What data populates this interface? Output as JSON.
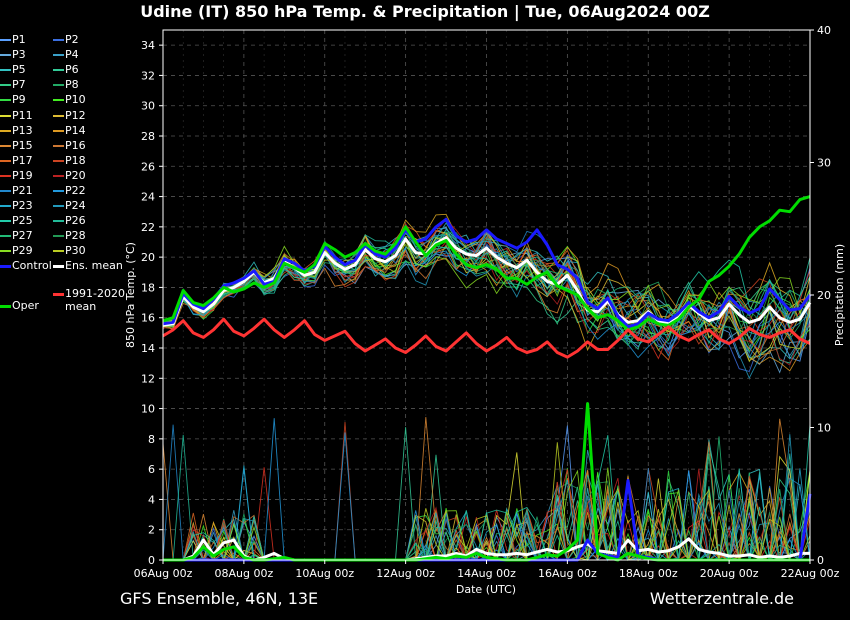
{
  "title": "Udine  (IT)  850 hPa Temp. & Precipitation | Tue, 06Aug2024 00Z",
  "footer": {
    "left": "GFS Ensemble, 46N, 13E",
    "right": "Wetterzentrale.de"
  },
  "chart_data": {
    "type": "line",
    "xlabel": "Date (UTC)",
    "ylabel": "850 hPa Temp. (°C)",
    "y2label": "Precipitation (mm)",
    "x_ticks": [
      "06Aug 00z",
      "08Aug 00z",
      "10Aug 00z",
      "12Aug 00z",
      "14Aug 00z",
      "16Aug 00z",
      "18Aug 00z",
      "20Aug 00z",
      "22Aug 00z"
    ],
    "x_range_hours": [
      0,
      384
    ],
    "step_hours": 6,
    "ylim": [
      0,
      35
    ],
    "y_ticks": [
      0,
      2,
      4,
      6,
      8,
      10,
      12,
      14,
      16,
      18,
      20,
      22,
      24,
      26,
      28,
      30,
      32,
      34
    ],
    "y2lim": [
      0,
      40
    ],
    "y2_ticks": [
      0,
      10,
      20,
      30,
      40
    ],
    "grid": true,
    "legend_entries": [
      {
        "label": "P1",
        "color": "#5aa0ff"
      },
      {
        "label": "P2",
        "color": "#3b6fe0"
      },
      {
        "label": "P3",
        "color": "#66aadd"
      },
      {
        "label": "P4",
        "color": "#3aa0c8"
      },
      {
        "label": "P5",
        "color": "#33c2c2"
      },
      {
        "label": "P6",
        "color": "#33cc99"
      },
      {
        "label": "P7",
        "color": "#33cc88"
      },
      {
        "label": "P8",
        "color": "#22aa66"
      },
      {
        "label": "P9",
        "color": "#33dd44"
      },
      {
        "label": "P10",
        "color": "#44ee22"
      },
      {
        "label": "P11",
        "color": "#dddd33"
      },
      {
        "label": "P12",
        "color": "#ddbb33"
      },
      {
        "label": "P13",
        "color": "#ddaa22"
      },
      {
        "label": "P14",
        "color": "#dd9922"
      },
      {
        "label": "P15",
        "color": "#dd8833"
      },
      {
        "label": "P16",
        "color": "#cc7733"
      },
      {
        "label": "P17",
        "color": "#dd6622"
      },
      {
        "label": "P18",
        "color": "#cc4422"
      },
      {
        "label": "P19",
        "color": "#dd3322"
      },
      {
        "label": "P20",
        "color": "#bb2222"
      },
      {
        "label": "P21",
        "color": "#2288cc"
      },
      {
        "label": "P22",
        "color": "#2299dd"
      },
      {
        "label": "P23",
        "color": "#22aacc"
      },
      {
        "label": "P24",
        "color": "#2299bb"
      },
      {
        "label": "P25",
        "color": "#22ccaa"
      },
      {
        "label": "P26",
        "color": "#22bb99"
      },
      {
        "label": "P27",
        "color": "#22bb77"
      },
      {
        "label": "P28",
        "color": "#229955"
      },
      {
        "label": "P29",
        "color": "#88dd22"
      },
      {
        "label": "P30",
        "color": "#bbcc22"
      },
      {
        "label": "Control",
        "color": "#1a1aff"
      },
      {
        "label": "Ens. mean",
        "color": "#ffffff"
      },
      {
        "label": "Oper",
        "color": "#00dd00"
      },
      {
        "label": "1991-2020 mean",
        "color": "#ff3333"
      }
    ],
    "series": [
      {
        "name": "Ens. mean",
        "axis": "temp",
        "color": "#ffffff",
        "values": [
          15.5,
          15.6,
          17.4,
          16.7,
          16.4,
          16.9,
          17.8,
          18.0,
          18.4,
          19.0,
          18.3,
          18.6,
          19.7,
          19.3,
          18.8,
          19.0,
          20.3,
          19.6,
          19.2,
          19.5,
          20.5,
          19.9,
          19.7,
          20.1,
          21.2,
          20.3,
          20.2,
          20.9,
          21.3,
          20.6,
          20.2,
          20.1,
          20.6,
          20.0,
          19.6,
          19.3,
          19.8,
          19.0,
          18.4,
          18.2,
          18.8,
          17.8,
          16.5,
          16.4,
          17.1,
          16.2,
          15.7,
          15.8,
          16.4,
          15.8,
          15.6,
          16.0,
          16.8,
          16.3,
          15.8,
          16.0,
          16.9,
          16.2,
          15.7,
          15.9,
          16.7,
          16.0,
          15.7,
          15.9,
          17.0
        ]
      },
      {
        "name": "Control",
        "axis": "temp",
        "color": "#1a1aff",
        "values": [
          15.6,
          15.7,
          17.6,
          16.9,
          16.6,
          17.2,
          18.1,
          18.3,
          18.6,
          19.1,
          18.2,
          18.4,
          19.9,
          19.6,
          19.1,
          19.4,
          20.7,
          20.0,
          19.5,
          19.8,
          20.8,
          20.2,
          20.0,
          20.6,
          21.8,
          21.0,
          21.2,
          22.0,
          22.5,
          21.4,
          21.0,
          21.2,
          21.8,
          21.2,
          20.9,
          20.6,
          21.0,
          21.8,
          20.8,
          19.5,
          19.2,
          18.6,
          17.0,
          16.6,
          17.3,
          16.1,
          15.4,
          15.6,
          16.3,
          15.9,
          15.8,
          16.3,
          17.0,
          16.4,
          16.0,
          16.4,
          17.4,
          16.7,
          16.3,
          16.6,
          17.9,
          17.2,
          16.5,
          16.6,
          17.5
        ]
      },
      {
        "name": "Oper",
        "axis": "temp",
        "color": "#00dd00",
        "values": [
          15.8,
          16.0,
          17.8,
          17.0,
          16.8,
          17.3,
          18.0,
          17.7,
          17.9,
          18.3,
          18.0,
          18.3,
          19.6,
          19.3,
          19.0,
          19.5,
          20.9,
          20.5,
          20.0,
          20.3,
          20.9,
          20.4,
          20.2,
          20.9,
          22.0,
          21.0,
          20.1,
          20.8,
          21.1,
          20.2,
          19.5,
          19.3,
          19.5,
          19.2,
          18.6,
          18.6,
          18.2,
          18.7,
          19.0,
          18.1,
          17.8,
          17.5,
          16.6,
          16.0,
          16.2,
          15.8,
          15.2,
          15.4,
          15.9,
          15.6,
          15.5,
          15.9,
          16.7,
          17.2,
          18.4,
          18.8,
          19.4,
          20.2,
          21.3,
          22.0,
          22.4,
          23.1,
          23.0,
          23.8,
          24.0
        ]
      },
      {
        "name": "1991-2020 mean",
        "axis": "temp",
        "color": "#ff3333",
        "values": [
          14.8,
          15.2,
          15.8,
          15.0,
          14.7,
          15.2,
          15.9,
          15.1,
          14.8,
          15.3,
          15.9,
          15.2,
          14.7,
          15.2,
          15.8,
          14.9,
          14.5,
          14.8,
          15.1,
          14.3,
          13.8,
          14.2,
          14.6,
          14.0,
          13.7,
          14.2,
          14.8,
          14.1,
          13.8,
          14.4,
          15.0,
          14.3,
          13.8,
          14.2,
          14.7,
          14.0,
          13.7,
          13.9,
          14.4,
          13.7,
          13.4,
          13.8,
          14.4,
          13.9,
          13.9,
          14.5,
          15.2,
          14.6,
          14.4,
          14.9,
          15.4,
          14.8,
          14.5,
          14.9,
          15.2,
          14.6,
          14.3,
          14.7,
          15.3,
          14.9,
          14.7,
          15.0,
          15.2,
          14.6,
          14.3
        ]
      },
      {
        "name": "Ens. mean",
        "axis": "precip",
        "color": "#ffffff",
        "values": [
          0,
          0,
          0,
          0.3,
          1.5,
          0.4,
          1.3,
          1.5,
          0.3,
          0,
          0.2,
          0.5,
          0.1,
          0,
          0,
          0,
          0,
          0,
          0,
          0,
          0,
          0,
          0,
          0,
          0,
          0.1,
          0.2,
          0.3,
          0.3,
          0.5,
          0.3,
          0.8,
          0.5,
          0.4,
          0.4,
          0.5,
          0.4,
          0.6,
          0.8,
          0.6,
          0.7,
          1.0,
          1.2,
          0.7,
          0.6,
          0.5,
          1.5,
          0.7,
          0.8,
          0.6,
          0.7,
          1.0,
          1.6,
          0.8,
          0.6,
          0.5,
          0.3,
          0.3,
          0.4,
          0.2,
          0.3,
          0.2,
          0.3,
          0.5,
          0.5
        ]
      },
      {
        "name": "Control",
        "axis": "precip",
        "color": "#1a1aff",
        "values": [
          0,
          0,
          0,
          0,
          0,
          0,
          0,
          0,
          0,
          0,
          0,
          0,
          0,
          0,
          0,
          0,
          0,
          0,
          0,
          0,
          0,
          0,
          0,
          0,
          0,
          0,
          0,
          0,
          0,
          0,
          0,
          0,
          0,
          0,
          0,
          0,
          0,
          0,
          0,
          0,
          0,
          0,
          1.5,
          0.5,
          0.3,
          0.2,
          6.0,
          0.3,
          0.2,
          0,
          0,
          0,
          0,
          0,
          0,
          0,
          0,
          0,
          0,
          0,
          0,
          0,
          0,
          0,
          5.0
        ]
      },
      {
        "name": "Oper",
        "axis": "precip",
        "color": "#00dd00",
        "values": [
          0,
          0,
          0,
          0.2,
          1.0,
          0.3,
          0.8,
          1.0,
          0.2,
          0,
          0,
          0.1,
          0.2,
          0,
          0,
          0,
          0,
          0,
          0,
          0,
          0,
          0,
          0,
          0,
          0,
          0,
          0.1,
          0.2,
          0.1,
          0.3,
          0.2,
          0.5,
          0.2,
          0.1,
          0,
          0,
          0,
          0.2,
          0.4,
          0.3,
          0.8,
          1.5,
          11.8,
          0.5,
          0.2,
          0,
          0.5,
          0.3,
          0.1,
          0,
          0,
          0,
          0,
          0,
          0,
          0,
          0,
          0,
          0,
          0,
          0,
          0,
          0,
          0,
          0
        ]
      }
    ],
    "ensemble_members": 30
  }
}
